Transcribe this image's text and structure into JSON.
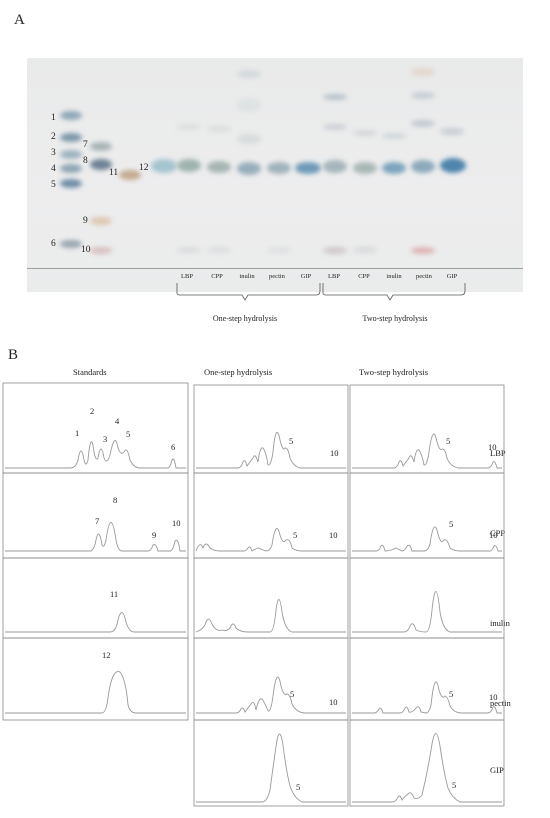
{
  "figure": {
    "panel_a_label": "A",
    "panel_b_label": "B",
    "tlc": {
      "standard_numbers": [
        "1",
        "2",
        "3",
        "4",
        "5",
        "6",
        "7",
        "8",
        "9",
        "10",
        "11",
        "12"
      ],
      "lanes_one_step": [
        "LBP",
        "CPP",
        "inulin",
        "pectin",
        "GIP"
      ],
      "lanes_two_step": [
        "LBP",
        "CPP",
        "inulin",
        "pectin",
        "GIP"
      ],
      "group_one_step": "One-step hydrolysis",
      "group_two_step": "Two-step hydrolysis"
    },
    "chromatograms": {
      "column_titles": [
        "Standards",
        "One-step hydrolysis",
        "Two-step hydrolysis"
      ],
      "row_labels": [
        "LBP",
        "CPP",
        "inulin",
        "pectin",
        "GIP"
      ],
      "standards_peak_labels": {
        "row1": [
          "1",
          "2",
          "3",
          "4",
          "5",
          "6"
        ],
        "row2": [
          "7",
          "8",
          "9",
          "10"
        ],
        "row3": [
          "11"
        ],
        "row4": [
          "12"
        ]
      },
      "sample_peak_labels": {
        "one_step": {
          "LBP": [
            "5",
            "10"
          ],
          "CPP": [
            "5",
            "10"
          ],
          "pectin": [
            "5",
            "10"
          ],
          "GIP": [
            "5"
          ]
        },
        "two_step": {
          "LBP": [
            "5",
            "10"
          ],
          "CPP": [
            "5",
            "10"
          ],
          "pectin": [
            "5",
            "10"
          ],
          "GIP": [
            "5"
          ]
        }
      }
    }
  }
}
